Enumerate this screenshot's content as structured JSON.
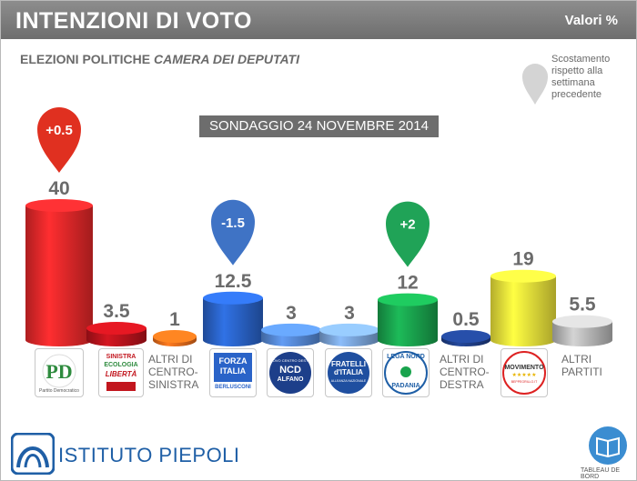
{
  "header": {
    "title": "INTENZIONI DI VOTO",
    "units": "Valori %"
  },
  "subtitle": {
    "main": "ELEZIONI POLITICHE",
    "italic": "CAMERA DEI DEPUTATI"
  },
  "legend_note": "Scostamento rispetto alla settimana precedente",
  "date_label": "SONDAGGIO 24 NOVEMBRE 2014",
  "colors": {
    "pd": "#e8282a",
    "sel": "#b9131c",
    "altri_cs": "#e66b1b",
    "fi": "#2a63c8",
    "ncd": "#5588d4",
    "fdi": "#7aa4d9",
    "lega": "#19a34d",
    "altri_cd": "#1f3f88",
    "m5s": "#f0e63a",
    "altri": "#b8b8b8"
  },
  "chart_data": {
    "type": "bar",
    "categories": [
      "Partito Democratico",
      "Sinistra Ecologia Libertà",
      "ALTRI DI CENTRO-SINISTRA",
      "Forza Italia",
      "NCD Alfano",
      "Fratelli d'Italia",
      "Lega Nord",
      "ALTRI DI CENTRO-DESTRA",
      "Movimento 5 Stelle",
      "ALTRI PARTITI"
    ],
    "values": [
      40,
      3.5,
      1,
      12.5,
      3,
      3,
      12,
      0.5,
      19,
      5.5
    ],
    "value_labels": [
      "40",
      "3.5",
      "1",
      "12.5",
      "3",
      "3",
      "12",
      "0.5",
      "19",
      "5.5"
    ],
    "changes": [
      {
        "index": 0,
        "label": "+0.5",
        "color": "#e03020"
      },
      {
        "index": 3,
        "label": "-1.5",
        "color": "#3f73c5"
      },
      {
        "index": 6,
        "label": "+2",
        "color": "#20a357"
      }
    ],
    "ylim": [
      0,
      40
    ]
  },
  "logos": {
    "pd": {
      "lines": [
        "Partito Democratico"
      ]
    },
    "sel": {
      "lines": [
        "SINISTRA",
        "ECOLOGIA",
        "LIBERTÀ"
      ]
    },
    "altri_cs": {
      "lines": [
        "ALTRI DI",
        "CENTRO-",
        "SINISTRA"
      ]
    },
    "fi": {
      "lines": [
        "FORZA",
        "ITALIA",
        "BERLUSCONI"
      ]
    },
    "ncd": {
      "lines": [
        "NUOVO CENTRO DESTRA",
        "NCD",
        "ALFANO"
      ]
    },
    "fdi": {
      "lines": [
        "FRATELLI",
        "d'ITALIA",
        "ALLEANZA NAZIONALE"
      ]
    },
    "lega": {
      "lines": [
        "LEGA NORD",
        "PADANIA"
      ]
    },
    "altri_cd": {
      "lines": [
        "ALTRI DI",
        "CENTRO-",
        "DESTRA"
      ]
    },
    "m5s": {
      "lines": [
        "MOVIMENTO",
        "★★★★★",
        "BEPPEGRILLO.IT"
      ]
    },
    "altri": {
      "lines": [
        "ALTRI",
        "PARTITI"
      ]
    }
  },
  "footer": {
    "brand": "ISTITUTO PIEPOLI",
    "tdb": "TABLEAU DE BORD"
  }
}
